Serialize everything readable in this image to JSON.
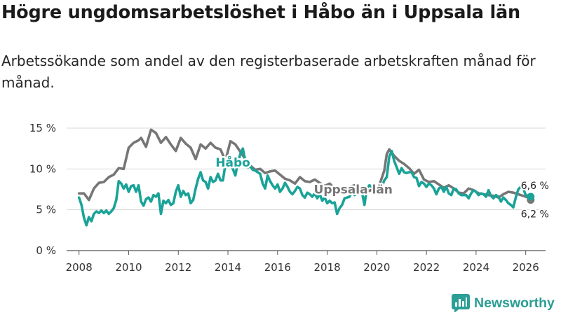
{
  "title": "Högre ungdomsarbetslöshet i Håbo än i Uppsala län",
  "subtitle": "Arbetssökande som andel av den registerbaserade arbetskraften månad för månad.",
  "brand": {
    "name": "Newsworthy",
    "icon": "newsworthy-logo-icon"
  },
  "colors": {
    "habo": "#1aa398",
    "uppsala": "#767676",
    "grid": "#d8d8d8",
    "brand": "#2b9e95"
  },
  "chart_data": {
    "type": "line",
    "title": "Högre ungdomsarbetslöshet i Håbo än i Uppsala län",
    "xlabel": "",
    "ylabel": "",
    "xlim": [
      2007.5,
      2026.8
    ],
    "ylim": [
      0,
      15
    ],
    "x_ticks": [
      2008,
      2010,
      2012,
      2014,
      2016,
      2018,
      2020,
      2022,
      2024,
      2026
    ],
    "x_tick_labels": [
      "2008",
      "2010",
      "2012",
      "2014",
      "2016",
      "2018",
      "2020",
      "2022",
      "2024",
      "2026"
    ],
    "y_ticks": [
      0,
      5,
      10,
      15
    ],
    "y_tick_labels": [
      "0 %",
      "5 %",
      "10 %",
      "15 %"
    ],
    "grid": true,
    "series": [
      {
        "name": "Uppsala län",
        "label": "Uppsala län",
        "end_label": "6,2 %",
        "last_value": 6.2,
        "x": [
          2008.0,
          2008.2,
          2008.4,
          2008.6,
          2008.8,
          2009.0,
          2009.2,
          2009.4,
          2009.6,
          2009.8,
          2010.0,
          2010.2,
          2010.4,
          2010.5,
          2010.7,
          2010.9,
          2011.1,
          2011.3,
          2011.5,
          2011.7,
          2011.9,
          2012.1,
          2012.3,
          2012.5,
          2012.7,
          2012.9,
          2013.1,
          2013.3,
          2013.5,
          2013.7,
          2013.9,
          2014.1,
          2014.3,
          2014.5,
          2014.7,
          2014.9,
          2015.1,
          2015.3,
          2015.5,
          2015.7,
          2015.9,
          2016.1,
          2016.3,
          2016.5,
          2016.7,
          2016.9,
          2017.1,
          2017.3,
          2017.5,
          2017.7,
          2017.9,
          2018.1,
          2018.3,
          2018.5,
          2018.7,
          2018.9,
          2019.1,
          2019.3,
          2019.5,
          2019.7,
          2019.9,
          2020.1,
          2020.3,
          2020.4,
          2020.5,
          2020.7,
          2020.9,
          2021.1,
          2021.3,
          2021.5,
          2021.7,
          2021.9,
          2022.1,
          2022.3,
          2022.5,
          2022.7,
          2022.9,
          2023.1,
          2023.3,
          2023.5,
          2023.7,
          2023.9,
          2024.1,
          2024.3,
          2024.5,
          2024.7,
          2024.9,
          2025.1,
          2025.3,
          2025.5,
          2025.7,
          2025.9,
          2026.1,
          2026.2
        ],
        "values": [
          7.0,
          7.0,
          6.2,
          7.6,
          8.3,
          8.4,
          9.0,
          9.3,
          10.1,
          10.0,
          12.6,
          13.2,
          13.5,
          13.8,
          12.7,
          14.8,
          14.4,
          13.2,
          13.9,
          13.0,
          12.2,
          13.8,
          13.1,
          12.6,
          11.2,
          13.0,
          12.5,
          13.2,
          12.6,
          12.4,
          11.0,
          13.4,
          13.0,
          12.1,
          11.2,
          10.4,
          9.9,
          10.0,
          9.5,
          9.7,
          9.8,
          9.3,
          8.8,
          8.6,
          8.2,
          9.0,
          8.5,
          8.4,
          8.7,
          8.3,
          7.9,
          8.2,
          7.6,
          7.3,
          7.4,
          7.8,
          8.0,
          7.8,
          7.6,
          7.3,
          7.6,
          8.0,
          9.8,
          11.8,
          12.4,
          11.6,
          11.0,
          10.6,
          10.1,
          9.4,
          9.9,
          8.7,
          8.4,
          8.5,
          8.1,
          7.7,
          8.0,
          7.6,
          7.1,
          7.0,
          7.6,
          7.4,
          7.0,
          6.9,
          6.8,
          6.7,
          6.5,
          6.9,
          7.2,
          7.1,
          6.9,
          6.7,
          6.5,
          6.2
        ]
      },
      {
        "name": "Håbo",
        "label": "Håbo",
        "end_label": "6,6 %",
        "last_value": 6.6,
        "x": [
          2008.0,
          2008.1,
          2008.2,
          2008.3,
          2008.4,
          2008.5,
          2008.6,
          2008.7,
          2008.8,
          2008.9,
          2009.0,
          2009.1,
          2009.2,
          2009.3,
          2009.4,
          2009.5,
          2009.6,
          2009.7,
          2009.8,
          2009.9,
          2010.0,
          2010.1,
          2010.2,
          2010.3,
          2010.4,
          2010.5,
          2010.6,
          2010.7,
          2010.8,
          2010.9,
          2011.0,
          2011.1,
          2011.2,
          2011.3,
          2011.4,
          2011.5,
          2011.6,
          2011.7,
          2011.8,
          2011.9,
          2012.0,
          2012.1,
          2012.2,
          2012.3,
          2012.4,
          2012.5,
          2012.6,
          2012.7,
          2012.8,
          2012.9,
          2013.0,
          2013.1,
          2013.2,
          2013.3,
          2013.4,
          2013.5,
          2013.6,
          2013.7,
          2013.8,
          2013.9,
          2014.0,
          2014.1,
          2014.2,
          2014.3,
          2014.4,
          2014.5,
          2014.6,
          2014.7,
          2014.8,
          2014.9,
          2015.0,
          2015.1,
          2015.2,
          2015.3,
          2015.4,
          2015.5,
          2015.6,
          2015.7,
          2015.8,
          2015.9,
          2016.0,
          2016.1,
          2016.2,
          2016.3,
          2016.4,
          2016.5,
          2016.6,
          2016.7,
          2016.8,
          2016.9,
          2017.0,
          2017.1,
          2017.2,
          2017.3,
          2017.4,
          2017.5,
          2017.6,
          2017.7,
          2017.8,
          2017.9,
          2018.0,
          2018.1,
          2018.2,
          2018.3,
          2018.4,
          2018.5,
          2018.6,
          2018.7,
          2018.8,
          2018.9,
          2019.0,
          2019.1,
          2019.2,
          2019.3,
          2019.4,
          2019.5,
          2019.6,
          2019.7,
          2019.8,
          2019.9,
          2020.0,
          2020.1,
          2020.2,
          2020.3,
          2020.4,
          2020.5,
          2020.6,
          2020.7,
          2020.8,
          2020.9,
          2021.0,
          2021.1,
          2021.2,
          2021.3,
          2021.4,
          2021.5,
          2021.6,
          2021.7,
          2021.8,
          2021.9,
          2022.0,
          2022.1,
          2022.2,
          2022.3,
          2022.4,
          2022.5,
          2022.6,
          2022.7,
          2022.8,
          2022.9,
          2023.0,
          2023.1,
          2023.2,
          2023.3,
          2023.4,
          2023.5,
          2023.6,
          2023.7,
          2023.8,
          2023.9,
          2024.0,
          2024.1,
          2024.2,
          2024.3,
          2024.4,
          2024.5,
          2024.6,
          2024.7,
          2024.8,
          2024.9,
          2025.0,
          2025.1,
          2025.2,
          2025.3,
          2025.4,
          2025.5,
          2025.6,
          2025.7,
          2025.8,
          2025.9,
          2026.0,
          2026.1,
          2026.2
        ],
        "values": [
          6.5,
          5.6,
          4.0,
          3.1,
          4.1,
          3.6,
          4.5,
          4.8,
          4.6,
          4.9,
          4.6,
          4.9,
          4.5,
          4.8,
          5.2,
          6.2,
          8.5,
          8.2,
          7.6,
          8.1,
          7.2,
          7.9,
          8.0,
          7.2,
          8.0,
          6.0,
          5.5,
          6.3,
          6.5,
          6.0,
          6.8,
          6.6,
          7.0,
          4.5,
          6.1,
          5.8,
          6.2,
          5.6,
          5.8,
          7.2,
          8.0,
          6.6,
          7.3,
          6.8,
          7.0,
          5.8,
          6.2,
          7.6,
          8.8,
          9.6,
          8.6,
          8.4,
          7.6,
          9.0,
          8.4,
          8.6,
          9.4,
          8.6,
          8.6,
          10.6,
          11.2,
          10.4,
          10.0,
          9.2,
          10.8,
          11.8,
          12.5,
          11.0,
          10.2,
          10.3,
          9.9,
          9.8,
          9.6,
          9.4,
          8.2,
          7.6,
          9.2,
          8.5,
          8.0,
          7.6,
          8.1,
          7.2,
          7.6,
          8.3,
          7.8,
          7.2,
          6.9,
          7.3,
          7.8,
          7.6,
          6.8,
          6.5,
          7.1,
          6.9,
          6.6,
          7.0,
          6.4,
          6.9,
          6.1,
          6.5,
          5.8,
          6.1,
          5.8,
          5.9,
          4.5,
          5.2,
          5.6,
          6.4,
          6.5,
          6.6,
          7.2,
          6.8,
          7.0,
          7.4,
          7.2,
          5.6,
          7.6,
          8.0,
          7.8,
          7.6,
          7.8,
          7.6,
          7.8,
          8.6,
          9.0,
          11.5,
          12.2,
          11.0,
          10.2,
          9.4,
          10.1,
          9.6,
          9.5,
          9.6,
          9.6,
          9.0,
          8.9,
          7.9,
          8.4,
          8.2,
          7.8,
          8.2,
          8.0,
          7.6,
          6.9,
          7.6,
          7.8,
          7.2,
          7.8,
          7.0,
          6.8,
          7.6,
          7.5,
          7.0,
          6.8,
          6.8,
          6.8,
          6.4,
          7.0,
          7.4,
          7.2,
          6.8,
          7.0,
          6.9,
          6.6,
          7.4,
          6.7,
          6.4,
          6.8,
          6.6,
          6.0,
          6.5,
          6.2,
          5.8,
          5.6,
          5.3,
          6.5,
          7.5,
          7.8,
          7.6,
          6.8,
          6.7,
          6.6
        ]
      }
    ]
  }
}
